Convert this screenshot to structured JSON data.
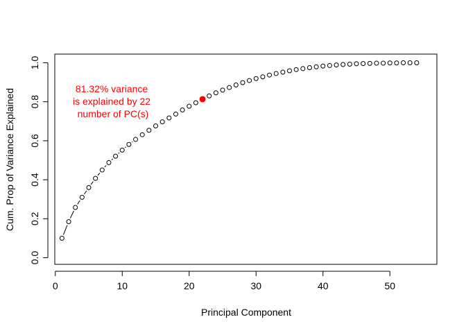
{
  "chart_data": {
    "type": "scatter",
    "xlabel": "Principal Component",
    "ylabel": "Cum. Prop of Variance Explained",
    "xlim": [
      0,
      55
    ],
    "ylim": [
      0,
      1.0
    ],
    "xticks": [
      "0",
      "10",
      "20",
      "30",
      "40",
      "50"
    ],
    "yticks": [
      "0.0",
      "0.2",
      "0.4",
      "0.6",
      "0.8",
      "1.0"
    ],
    "grid": false,
    "x": [
      1,
      2,
      3,
      4,
      5,
      6,
      7,
      8,
      9,
      10,
      11,
      12,
      13,
      14,
      15,
      16,
      17,
      18,
      19,
      20,
      21,
      22,
      23,
      24,
      25,
      26,
      27,
      28,
      29,
      30,
      31,
      32,
      33,
      34,
      35,
      36,
      37,
      38,
      39,
      40,
      41,
      42,
      43,
      44,
      45,
      46,
      47,
      48,
      49,
      50,
      51,
      52,
      53,
      54
    ],
    "y": [
      0.1,
      0.185,
      0.258,
      0.31,
      0.36,
      0.407,
      0.45,
      0.488,
      0.521,
      0.552,
      0.581,
      0.607,
      0.631,
      0.654,
      0.676,
      0.697,
      0.717,
      0.737,
      0.758,
      0.777,
      0.795,
      0.8132,
      0.83,
      0.846,
      0.86,
      0.873,
      0.886,
      0.898,
      0.909,
      0.919,
      0.928,
      0.937,
      0.945,
      0.952,
      0.959,
      0.965,
      0.97,
      0.975,
      0.979,
      0.983,
      0.986,
      0.989,
      0.991,
      0.993,
      0.995,
      0.996,
      0.997,
      0.998,
      0.998,
      0.999,
      0.999,
      1.0,
      1.0,
      1.0
    ],
    "highlight": {
      "x": 22,
      "y": 0.8132,
      "color": "#ff0000"
    },
    "annotation_lines": [
      "81.32% variance",
      "is explained by 22",
      "number of PC(s)"
    ],
    "annotation_color": "#ff0000",
    "point_color": "#000000"
  }
}
